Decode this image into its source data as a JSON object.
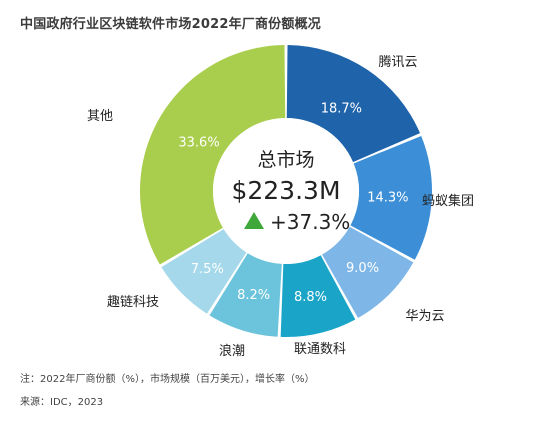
{
  "title": "中国政府行业区块链软件市场2022年厂商份额概况",
  "chart_data": {
    "type": "pie",
    "variant": "donut",
    "categories": [
      "腾讯云",
      "蚂蚁集团",
      "华为云",
      "联通数科",
      "浪潮",
      "趣链科技",
      "其他"
    ],
    "values": [
      18.7,
      14.3,
      9.0,
      8.8,
      8.2,
      7.5,
      33.6
    ],
    "value_labels": [
      "18.7%",
      "14.3%",
      "9.0%",
      "8.8%",
      "8.2%",
      "7.5%",
      "33.6%"
    ],
    "colors": [
      "#1f64ab",
      "#3c8fd6",
      "#7fb6e8",
      "#1aa5c8",
      "#6cc4dc",
      "#a4d8ea",
      "#a9cd4c"
    ],
    "label_colors": [
      "#ffffff",
      "#ffffff",
      "#ffffff",
      "#ffffff",
      "#ffffff",
      "#ffffff",
      "#ffffff"
    ],
    "center": {
      "title": "总市场",
      "value": "$223.3M",
      "growth": "+37.3%",
      "growth_icon": "triangle-up-icon",
      "growth_color": "#3ea83a"
    }
  },
  "notes": {
    "line1": "注：2022年厂商份额（%），市场规模（百万美元），增长率（%）",
    "line2": "来源：IDC，2023"
  }
}
